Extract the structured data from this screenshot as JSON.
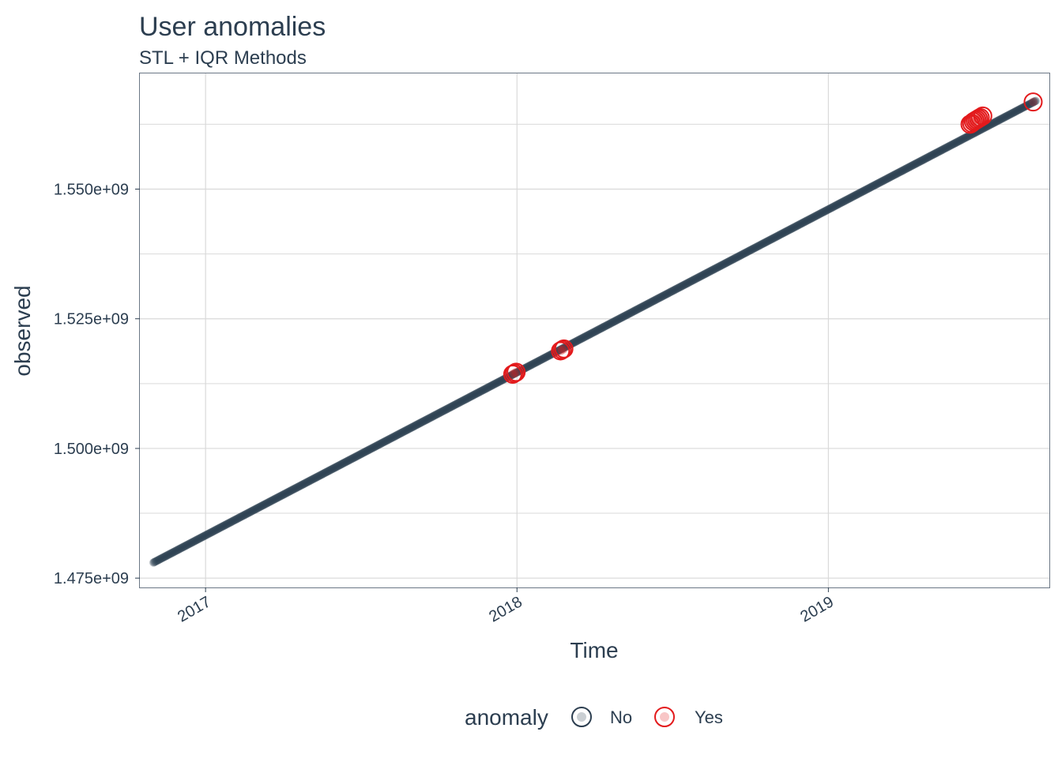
{
  "chart_data": {
    "type": "scatter",
    "title": "User anomalies",
    "subtitle": "STL + IQR Methods",
    "xlabel": "Time",
    "ylabel": "observed",
    "x_ticks": [
      {
        "value": "2017-01-01",
        "label": "2017"
      },
      {
        "value": "2018-01-01",
        "label": "2018"
      },
      {
        "value": "2019-01-01",
        "label": "2019"
      }
    ],
    "y_ticks": [
      {
        "value": 1475000000,
        "label": "1.475e+09"
      },
      {
        "value": 1500000000,
        "label": "1.500e+09"
      },
      {
        "value": 1525000000,
        "label": "1.525e+09"
      },
      {
        "value": 1550000000,
        "label": "1.550e+09"
      }
    ],
    "xlim": [
      "2016-10-16",
      "2019-09-17"
    ],
    "ylim": [
      1473200000,
      1572300000
    ],
    "grid": true,
    "legend": {
      "title": "anomaly",
      "position": "bottom",
      "entries": [
        {
          "label": "No",
          "color": "#2c3e50"
        },
        {
          "label": "Yes",
          "color": "#e31a1c"
        }
      ]
    },
    "series": [
      {
        "name": "No",
        "color": "#2c3e50",
        "x_start": "2016-11-01",
        "x_end": "2019-09-01",
        "y_start": 1478000000,
        "y_end": 1567000000
      },
      {
        "name": "Yes",
        "color": "#e31a1c",
        "points": [
          {
            "x": "2017-12-27",
            "y": 1514300000
          },
          {
            "x": "2017-12-29",
            "y": 1514500000
          },
          {
            "x": "2017-12-31",
            "y": 1514700000
          },
          {
            "x": "2018-02-21",
            "y": 1518800000
          },
          {
            "x": "2018-02-23",
            "y": 1519000000
          },
          {
            "x": "2018-02-25",
            "y": 1519200000
          },
          {
            "x": "2019-06-16",
            "y": 1562500000
          },
          {
            "x": "2019-06-18",
            "y": 1562700000
          },
          {
            "x": "2019-06-20",
            "y": 1563000000
          },
          {
            "x": "2019-06-22",
            "y": 1563200000
          },
          {
            "x": "2019-06-24",
            "y": 1563400000
          },
          {
            "x": "2019-06-26",
            "y": 1563600000
          },
          {
            "x": "2019-06-28",
            "y": 1563800000
          },
          {
            "x": "2019-07-01",
            "y": 1564100000
          },
          {
            "x": "2019-08-29",
            "y": 1566800000
          }
        ]
      }
    ]
  }
}
